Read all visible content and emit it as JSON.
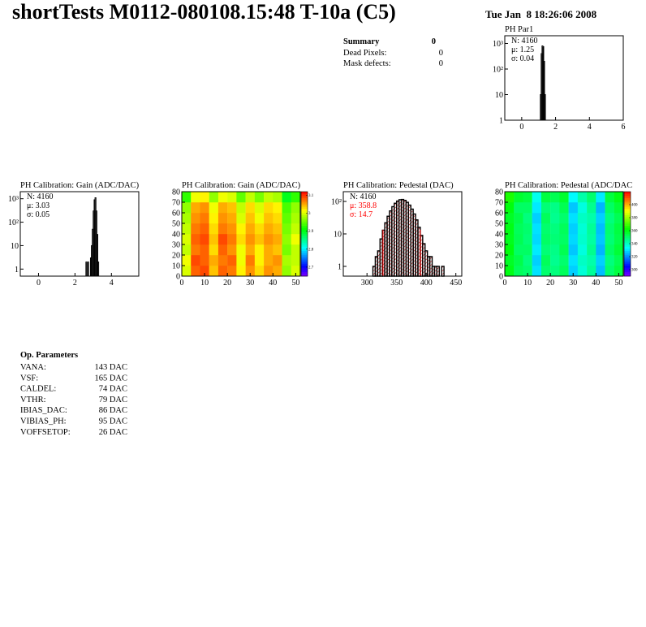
{
  "header": {
    "title": "shortTests M0112-080108.15:48 T-10a (C5)",
    "date": "Tue Jan  8 18:26:06 2008"
  },
  "summary": {
    "title": "Summary",
    "value": "0",
    "rows": [
      [
        "Dead Pixels:",
        "0"
      ],
      [
        "Mask defects:",
        "0"
      ]
    ]
  },
  "parameters": {
    "title": "Op. Parameters",
    "rows": [
      [
        "VANA:",
        "143 DAC"
      ],
      [
        "VSF:",
        "165 DAC"
      ],
      [
        "CALDEL:",
        "74 DAC"
      ],
      [
        "VTHR:",
        "79 DAC"
      ],
      [
        "IBIAS_DAC:",
        "86 DAC"
      ],
      [
        "VIBIAS_PH:",
        "95 DAC"
      ],
      [
        "VOFFSETOP:",
        "26 DAC"
      ]
    ]
  },
  "chart_data": [
    {
      "type": "histogram",
      "title": "PH Par1",
      "bins": [
        1.1,
        1.15,
        1.2,
        1.25,
        1.3,
        1.35,
        1.4
      ],
      "values": [
        10,
        400,
        800,
        750,
        200,
        10
      ],
      "color": "#000000",
      "xlim": [
        -1,
        6
      ],
      "xticks": [
        0,
        2,
        4,
        6
      ],
      "ylim": [
        1,
        2000
      ],
      "log_y": true,
      "yticks": [
        1,
        10,
        {
          "value": 100,
          "label": "10²"
        },
        {
          "value": 1000,
          "label": "10³"
        }
      ],
      "stats": [
        "N: 4160",
        "μ: 1.25",
        "σ: 0.04"
      ],
      "stats_colors": [
        "#000000",
        "#000000",
        "#000000"
      ]
    },
    {
      "type": "histogram",
      "title": "PH Calibration: Gain (ADC/DAC)",
      "bins": [
        2.6,
        2.65,
        2.7,
        2.75,
        2.8,
        2.85,
        2.9,
        2.95,
        3.0,
        3.05,
        3.1,
        3.15,
        3.2,
        3.25,
        3.3
      ],
      "values": [
        2,
        0,
        2,
        0,
        0,
        3,
        10,
        50,
        300,
        900,
        1100,
        300,
        30,
        2
      ],
      "color": "#000000",
      "xlim": [
        -1,
        5.5
      ],
      "xticks": [
        0,
        2,
        4
      ],
      "ylim": [
        0.5,
        2000
      ],
      "log_y": true,
      "yticks": [
        1,
        10,
        {
          "value": 100,
          "label": "10²"
        },
        {
          "value": 1000,
          "label": "10³"
        }
      ],
      "stats": [
        "N: 4160",
        "μ: 3.03",
        "σ: 0.05"
      ],
      "stats_colors": [
        "#000000",
        "#000000",
        "#000000"
      ]
    },
    {
      "type": "heatmap",
      "title": "PH Calibration: Gain (ADC/DAC)",
      "xbins": [
        0,
        4,
        8,
        12,
        16,
        20,
        24,
        28,
        32,
        36,
        40,
        44,
        48,
        52
      ],
      "ybins": [
        0,
        10,
        20,
        30,
        40,
        50,
        60,
        70,
        80
      ],
      "z": [
        [
          3.0,
          3.08,
          3.09,
          3.04,
          3.08,
          3.07,
          3.02,
          3.06,
          3.03,
          3.06,
          3.05,
          2.97,
          3.0
        ],
        [
          3.01,
          3.09,
          3.08,
          3.05,
          3.07,
          3.08,
          3.01,
          3.07,
          3.02,
          3.05,
          3.06,
          2.98,
          2.99
        ],
        [
          2.99,
          3.07,
          3.08,
          3.03,
          3.08,
          3.06,
          3.01,
          3.05,
          3.02,
          3.05,
          3.04,
          2.96,
          2.99
        ],
        [
          3.0,
          3.08,
          3.09,
          3.04,
          3.09,
          3.07,
          3.03,
          3.06,
          3.04,
          3.06,
          3.05,
          2.97,
          3.01
        ],
        [
          2.99,
          3.07,
          3.08,
          3.03,
          3.07,
          3.06,
          3.02,
          3.05,
          3.03,
          3.05,
          3.04,
          2.96,
          2.99
        ],
        [
          2.98,
          3.06,
          3.07,
          3.02,
          3.06,
          3.05,
          3.0,
          3.04,
          3.01,
          3.04,
          3.03,
          2.95,
          2.98
        ],
        [
          2.97,
          3.05,
          3.06,
          3.01,
          3.05,
          3.04,
          2.99,
          3.03,
          3.0,
          3.03,
          3.02,
          2.94,
          2.97
        ],
        [
          2.93,
          3.01,
          3.02,
          2.97,
          3.01,
          3.0,
          2.95,
          2.99,
          2.96,
          2.99,
          2.98,
          2.9,
          2.93
        ]
      ],
      "xlim": [
        0,
        52
      ],
      "xticks": [
        0,
        10,
        20,
        30,
        40,
        50
      ],
      "ylim": [
        0,
        80
      ],
      "yticks": [
        0,
        10,
        20,
        30,
        40,
        50,
        60,
        70,
        80
      ],
      "zlim": [
        2.65,
        3.12
      ],
      "zticks": [
        2.7,
        2.8,
        2.9,
        3,
        3.1
      ]
    },
    {
      "type": "histogram",
      "title": "PH Calibration: Pedestal (DAC)",
      "bins": [
        310,
        314,
        318,
        322,
        326,
        330,
        334,
        338,
        342,
        346,
        350,
        354,
        358,
        362,
        366,
        370,
        374,
        378,
        382,
        386,
        390,
        394,
        398,
        402,
        406,
        410,
        414,
        418,
        422,
        426,
        430,
        434
      ],
      "values": [
        1,
        2,
        3,
        7,
        13,
        22,
        35,
        51,
        69,
        88,
        103,
        113,
        115,
        108,
        94,
        77,
        58,
        41,
        27,
        16,
        9,
        5,
        3,
        2,
        2,
        1,
        1,
        1,
        0,
        1,
        0
      ],
      "color": "#000000",
      "fill_color": "#cc0000",
      "markers": [
        327,
        390
      ],
      "marker_color": "#ff0000",
      "xlim": [
        260,
        460
      ],
      "xticks": [
        300,
        350,
        400,
        450
      ],
      "ylim": [
        0.5,
        200
      ],
      "log_y": true,
      "yticks": [
        1,
        10,
        {
          "value": 100,
          "label": "10²"
        }
      ],
      "stats": [
        "N: 4160",
        "μ: 358.8",
        "σ: 14.7"
      ],
      "stats_colors": [
        "#000000",
        "#ff0000",
        "#ff0000"
      ]
    },
    {
      "type": "heatmap",
      "title": "PH Calibration: Pedestal (ADC/DAC",
      "xbins": [
        0,
        4,
        8,
        12,
        16,
        20,
        24,
        28,
        32,
        36,
        40,
        44,
        48,
        52
      ],
      "ybins": [
        0,
        10,
        20,
        30,
        40,
        50,
        60,
        70,
        80
      ],
      "z": [
        [
          360,
          352,
          350,
          330,
          350,
          348,
          352,
          328,
          338,
          345,
          326,
          350,
          355
        ],
        [
          358,
          354,
          348,
          328,
          352,
          346,
          350,
          330,
          340,
          343,
          328,
          348,
          353
        ],
        [
          361,
          351,
          351,
          331,
          349,
          347,
          353,
          327,
          337,
          346,
          325,
          351,
          356
        ],
        [
          359,
          353,
          349,
          329,
          351,
          349,
          351,
          329,
          339,
          344,
          327,
          349,
          354
        ],
        [
          360,
          352,
          350,
          330,
          350,
          348,
          352,
          328,
          338,
          345,
          326,
          350,
          355
        ],
        [
          358,
          354,
          348,
          328,
          352,
          346,
          350,
          330,
          340,
          343,
          328,
          348,
          353
        ],
        [
          361,
          351,
          351,
          331,
          349,
          347,
          353,
          327,
          337,
          346,
          325,
          351,
          356
        ],
        [
          365,
          357,
          355,
          335,
          355,
          353,
          357,
          333,
          343,
          350,
          331,
          355,
          360
        ]
      ],
      "xlim": [
        0,
        52
      ],
      "xticks": [
        0,
        10,
        20,
        30,
        40,
        50
      ],
      "ylim": [
        0,
        80
      ],
      "yticks": [
        0,
        10,
        20,
        30,
        40,
        50,
        60,
        70,
        80
      ],
      "zlim": [
        290,
        420
      ],
      "zticks": [
        300,
        320,
        340,
        360,
        380,
        400
      ]
    }
  ]
}
